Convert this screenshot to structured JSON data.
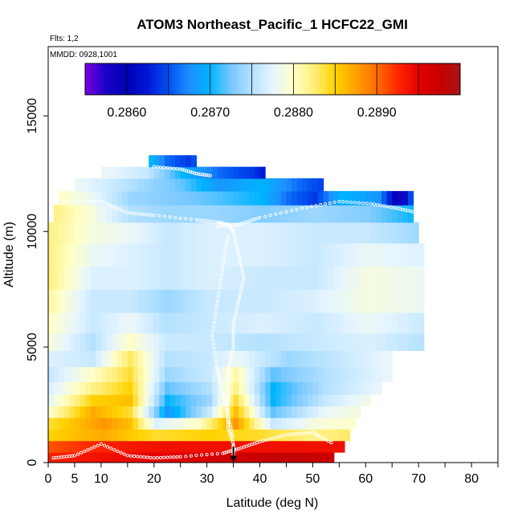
{
  "chart_data": {
    "type": "heatmap",
    "title": "ATOM3 Northeast_Pacific_1 HCFC22_GMI",
    "flights_label": "Flts: 1,2",
    "dates_label": "MMDD: 0928,1001",
    "xlabel": "Latitude (deg N)",
    "ylabel": "Altitude (m)",
    "xlim": [
      0,
      85
    ],
    "ylim": [
      0,
      18000
    ],
    "x_ticks": [
      0,
      5,
      10,
      20,
      30,
      40,
      50,
      60,
      70,
      80
    ],
    "y_ticks": [
      0,
      5000,
      10000,
      15000
    ],
    "colorbar": {
      "range": [
        0.2855,
        0.29
      ],
      "ticks": [
        "0.2860",
        "0.2870",
        "0.2880",
        "0.2890"
      ],
      "tick_values": [
        0.286,
        0.287,
        0.288,
        0.289
      ],
      "colors": [
        "#7a00e0",
        "#1a00c8",
        "#0000b4",
        "#0018d8",
        "#0050f0",
        "#1e90ff",
        "#00b4ff",
        "#78c8ff",
        "#b4e1ff",
        "#e6f5ff",
        "#ffffc8",
        "#ffee78",
        "#ffd200",
        "#ffa000",
        "#ff6e00",
        "#ff2800",
        "#e60000",
        "#c80000",
        "#aa1414"
      ]
    },
    "altitude_bands_m": [
      {
        "alt": 200,
        "values": [
          [
            0,
            0.2893
          ],
          [
            10,
            0.2894
          ],
          [
            20,
            0.2895
          ],
          [
            35,
            0.2897
          ],
          [
            45,
            0.2898
          ],
          [
            54,
            0.2897
          ]
        ]
      },
      {
        "alt": 700,
        "values": [
          [
            0,
            0.2891
          ],
          [
            10,
            0.2893
          ],
          [
            20,
            0.2894
          ],
          [
            35,
            0.2894
          ],
          [
            45,
            0.2894
          ],
          [
            56,
            0.2894
          ]
        ]
      },
      {
        "alt": 1200,
        "values": [
          [
            0,
            0.2885
          ],
          [
            10,
            0.2887
          ],
          [
            20,
            0.2884
          ],
          [
            30,
            0.2885
          ],
          [
            40,
            0.2884
          ],
          [
            50,
            0.2882
          ],
          [
            57,
            0.2883
          ]
        ]
      },
      {
        "alt": 1700,
        "values": [
          [
            0,
            0.2884
          ],
          [
            10,
            0.2888
          ],
          [
            15,
            0.2886
          ],
          [
            20,
            0.2877
          ],
          [
            28,
            0.288
          ],
          [
            35,
            0.2888
          ],
          [
            42,
            0.2876
          ],
          [
            50,
            0.2879
          ],
          [
            58,
            0.288
          ]
        ]
      },
      {
        "alt": 2200,
        "values": [
          [
            0,
            0.288
          ],
          [
            8,
            0.2887
          ],
          [
            15,
            0.2884
          ],
          [
            22,
            0.2868
          ],
          [
            30,
            0.2876
          ],
          [
            35,
            0.2886
          ],
          [
            42,
            0.2872
          ],
          [
            52,
            0.2878
          ],
          [
            59,
            0.2879
          ]
        ]
      },
      {
        "alt": 2700,
        "values": [
          [
            0,
            0.2878
          ],
          [
            8,
            0.2885
          ],
          [
            15,
            0.2886
          ],
          [
            22,
            0.287
          ],
          [
            30,
            0.2874
          ],
          [
            35,
            0.2884
          ],
          [
            42,
            0.287
          ],
          [
            52,
            0.2876
          ],
          [
            61,
            0.2879
          ]
        ]
      },
      {
        "alt": 3200,
        "values": [
          [
            0,
            0.2877
          ],
          [
            8,
            0.2882
          ],
          [
            15,
            0.2885
          ],
          [
            22,
            0.2872
          ],
          [
            30,
            0.2875
          ],
          [
            35,
            0.2882
          ],
          [
            42,
            0.287
          ],
          [
            52,
            0.2875
          ],
          [
            63,
            0.2878
          ]
        ]
      },
      {
        "alt": 3800,
        "values": [
          [
            0,
            0.2876
          ],
          [
            8,
            0.288
          ],
          [
            15,
            0.2884
          ],
          [
            22,
            0.2874
          ],
          [
            30,
            0.2876
          ],
          [
            35,
            0.2881
          ],
          [
            42,
            0.2872
          ],
          [
            52,
            0.2875
          ],
          [
            65,
            0.2878
          ]
        ]
      },
      {
        "alt": 4500,
        "values": [
          [
            0,
            0.2877
          ],
          [
            8,
            0.2876
          ],
          [
            15,
            0.2883
          ],
          [
            22,
            0.2875
          ],
          [
            30,
            0.2876
          ],
          [
            35,
            0.2878
          ],
          [
            45,
            0.2874
          ],
          [
            55,
            0.2876
          ],
          [
            65,
            0.2878
          ]
        ]
      },
      {
        "alt": 5200,
        "values": [
          [
            0,
            0.2879
          ],
          [
            8,
            0.2875
          ],
          [
            15,
            0.288
          ],
          [
            22,
            0.2876
          ],
          [
            30,
            0.2876
          ],
          [
            40,
            0.2875
          ],
          [
            50,
            0.2876
          ],
          [
            60,
            0.2877
          ],
          [
            71,
            0.2875
          ]
        ]
      },
      {
        "alt": 6000,
        "values": [
          [
            0,
            0.288
          ],
          [
            8,
            0.2876
          ],
          [
            15,
            0.2878
          ],
          [
            22,
            0.2875
          ],
          [
            30,
            0.2876
          ],
          [
            40,
            0.2877
          ],
          [
            50,
            0.2876
          ],
          [
            60,
            0.2878
          ],
          [
            71,
            0.2876
          ]
        ]
      },
      {
        "alt": 7000,
        "values": [
          [
            0,
            0.2881
          ],
          [
            8,
            0.2876
          ],
          [
            15,
            0.2876
          ],
          [
            22,
            0.2874
          ],
          [
            30,
            0.2876
          ],
          [
            40,
            0.2876
          ],
          [
            50,
            0.2877
          ],
          [
            60,
            0.2879
          ],
          [
            71,
            0.2878
          ]
        ]
      },
      {
        "alt": 8000,
        "values": [
          [
            0,
            0.2882
          ],
          [
            8,
            0.2877
          ],
          [
            15,
            0.2877
          ],
          [
            22,
            0.2876
          ],
          [
            30,
            0.2877
          ],
          [
            40,
            0.2876
          ],
          [
            50,
            0.2876
          ],
          [
            60,
            0.2879
          ],
          [
            71,
            0.2878
          ]
        ]
      },
      {
        "alt": 9000,
        "values": [
          [
            0,
            0.2882
          ],
          [
            8,
            0.2878
          ],
          [
            15,
            0.2877
          ],
          [
            22,
            0.2876
          ],
          [
            30,
            0.2877
          ],
          [
            40,
            0.2877
          ],
          [
            50,
            0.2876
          ],
          [
            60,
            0.2878
          ],
          [
            71,
            0.2877
          ]
        ]
      },
      {
        "alt": 10000,
        "values": [
          [
            0,
            0.2882
          ],
          [
            8,
            0.2879
          ],
          [
            15,
            0.2878
          ],
          [
            22,
            0.2876
          ],
          [
            30,
            0.2877
          ],
          [
            40,
            0.2877
          ],
          [
            50,
            0.2876
          ],
          [
            60,
            0.2876
          ],
          [
            70,
            0.2874
          ]
        ]
      },
      {
        "alt": 10800,
        "values": [
          [
            1,
            0.2882
          ],
          [
            8,
            0.2879
          ],
          [
            15,
            0.2875
          ],
          [
            22,
            0.2874
          ],
          [
            30,
            0.2874
          ],
          [
            40,
            0.2873
          ],
          [
            50,
            0.2874
          ],
          [
            60,
            0.2873
          ],
          [
            69,
            0.287
          ]
        ]
      },
      {
        "alt": 11500,
        "values": [
          [
            2,
            0.288
          ],
          [
            8,
            0.2878
          ],
          [
            15,
            0.2874
          ],
          [
            22,
            0.2873
          ],
          [
            30,
            0.2872
          ],
          [
            40,
            0.287
          ],
          [
            45,
            0.2866
          ],
          [
            50,
            0.2864
          ],
          [
            55,
            0.287
          ],
          [
            62,
            0.2868
          ],
          [
            66,
            0.2858
          ],
          [
            69,
            0.2868
          ]
        ]
      },
      {
        "alt": 12000,
        "values": [
          [
            5,
            0.2878
          ],
          [
            12,
            0.2876
          ],
          [
            18,
            0.2874
          ],
          [
            25,
            0.2872
          ],
          [
            32,
            0.2868
          ],
          [
            40,
            0.287
          ],
          [
            47,
            0.2866
          ],
          [
            52,
            0.2864
          ]
        ]
      },
      {
        "alt": 12600,
        "values": [
          [
            10,
            0.2878
          ],
          [
            18,
            0.2876
          ],
          [
            25,
            0.287
          ],
          [
            32,
            0.2866
          ],
          [
            38,
            0.2864
          ],
          [
            41,
            0.2862
          ]
        ]
      },
      {
        "alt": 13000,
        "values": [
          [
            19,
            0.287
          ],
          [
            22,
            0.2866
          ],
          [
            26,
            0.2864
          ],
          [
            28,
            0.2866
          ]
        ]
      }
    ],
    "flight_tracks": [
      {
        "name": "track-1",
        "points": [
          [
            1,
            200
          ],
          [
            5,
            300
          ],
          [
            10,
            800
          ],
          [
            15,
            300
          ],
          [
            20,
            200
          ],
          [
            25,
            250
          ],
          [
            33,
            400
          ],
          [
            36,
            600
          ],
          [
            40,
            900
          ],
          [
            45,
            1200
          ],
          [
            50,
            1300
          ],
          [
            54,
            800
          ]
        ]
      },
      {
        "name": "track-2",
        "points": [
          [
            3,
            11300
          ],
          [
            10,
            11300
          ],
          [
            15,
            10800
          ],
          [
            20,
            10700
          ],
          [
            28,
            10500
          ],
          [
            32,
            10400
          ],
          [
            34,
            10300
          ],
          [
            35,
            10000
          ],
          [
            36,
            9000
          ],
          [
            37,
            8000
          ],
          [
            36,
            7000
          ],
          [
            35,
            6000
          ],
          [
            35,
            5000
          ],
          [
            34,
            4000
          ],
          [
            34,
            3000
          ],
          [
            34,
            2500
          ],
          [
            34,
            1500
          ],
          [
            35,
            800
          ],
          [
            35,
            300
          ]
        ]
      },
      {
        "name": "track-3",
        "points": [
          [
            32,
            10200
          ],
          [
            36,
            10300
          ],
          [
            40,
            10600
          ],
          [
            48,
            11000
          ],
          [
            55,
            11300
          ],
          [
            61,
            11200
          ],
          [
            66,
            11000
          ],
          [
            70,
            10800
          ]
        ]
      },
      {
        "name": "track-4",
        "points": [
          [
            20,
            12800
          ],
          [
            25,
            12700
          ],
          [
            28,
            12500
          ],
          [
            31,
            12400
          ]
        ]
      },
      {
        "name": "track-5",
        "points": [
          [
            34,
            9800
          ],
          [
            33,
            8500
          ],
          [
            32,
            7000
          ],
          [
            31,
            5500
          ],
          [
            32,
            4000
          ],
          [
            33,
            3000
          ],
          [
            34,
            2000
          ],
          [
            35,
            1000
          ]
        ]
      }
    ],
    "marker": {
      "x": 35,
      "label": "arrow"
    }
  }
}
